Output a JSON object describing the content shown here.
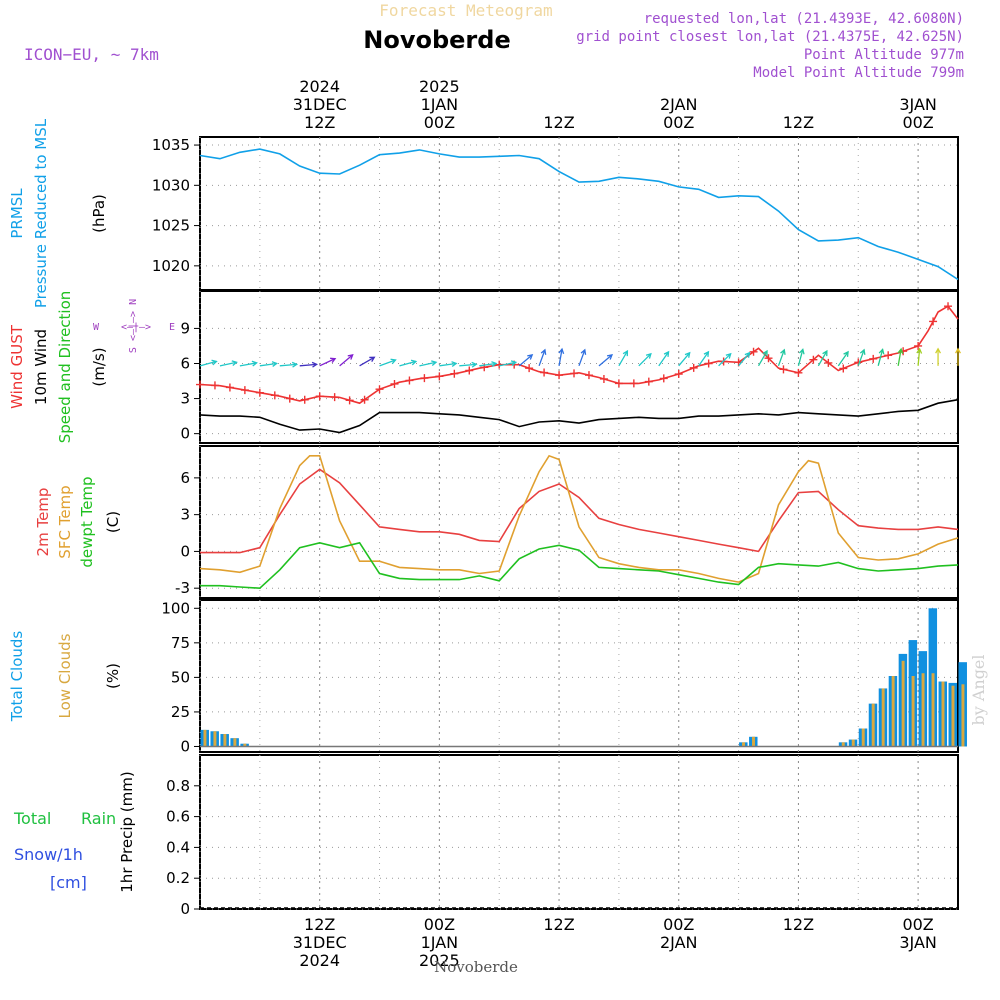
{
  "header": {
    "title": "Novoberde",
    "subtitle": "Forecast Meteogram",
    "model": "ICON−EU, ~ 7km",
    "info": [
      "requested lon,lat (21.4393E, 42.6080N)",
      "grid point closest lon,lat (21.4375E, 42.625N)",
      "Point Altitude 977m",
      "Model Point Altitude 799m"
    ],
    "footer": "Novoberde",
    "watermark": "by Angel"
  },
  "time_axis": {
    "top_labels": [
      {
        "hour": 12,
        "lines": [
          "2024",
          "31DEC",
          "12Z"
        ]
      },
      {
        "hour": 24,
        "lines": [
          "2025",
          "1JAN",
          "00Z"
        ]
      },
      {
        "hour": 36,
        "lines": [
          "12Z"
        ]
      },
      {
        "hour": 48,
        "lines": [
          "2JAN",
          "00Z"
        ]
      },
      {
        "hour": 60,
        "lines": [
          "12Z"
        ]
      },
      {
        "hour": 72,
        "lines": [
          "3JAN",
          "00Z"
        ]
      }
    ],
    "bottom_labels": [
      {
        "hour": 12,
        "lines": [
          "12Z",
          "31DEC",
          "2024"
        ]
      },
      {
        "hour": 24,
        "lines": [
          "00Z",
          "1JAN",
          "2025"
        ]
      },
      {
        "hour": 36,
        "lines": [
          "12Z"
        ]
      },
      {
        "hour": 48,
        "lines": [
          "00Z",
          "2JAN"
        ]
      },
      {
        "hour": 60,
        "lines": [
          "12Z"
        ]
      },
      {
        "hour": 72,
        "lines": [
          "00Z",
          "3JAN"
        ]
      }
    ]
  },
  "legend_compass": {
    "north": "N",
    "south": "S",
    "west": "W",
    "east": "E",
    "arrow": "<—|—>"
  },
  "colors": {
    "pressure": "#10a0e8",
    "gust": "#ee3333",
    "wind": "#000000",
    "t2m": "#e84040",
    "sfc": "#e0a030",
    "dewpt": "#20c020",
    "total_clouds": "#1090e0",
    "low_clouds": "#d8a840",
    "rain": "#20c040",
    "snow": "#3050e0",
    "compass": "#a040c0",
    "info": "#a050d0"
  },
  "chart_data": [
    {
      "type": "line",
      "id": "pressure",
      "panel_labels": [
        [
          "PRMSL",
          "#10a0e8"
        ],
        [
          "Pressure Reduced to MSL",
          "#10a0e8"
        ],
        [
          "(hPa)",
          "#000000"
        ]
      ],
      "ylim": [
        1017,
        1036
      ],
      "yticks": [
        1020,
        1025,
        1030,
        1035
      ],
      "series": [
        {
          "color_key": "pressure",
          "x": [
            0,
            2,
            4,
            6,
            8,
            10,
            12,
            14,
            16,
            18,
            20,
            22,
            24,
            26,
            28,
            30,
            32,
            34,
            36,
            38,
            40,
            42,
            44,
            46,
            48,
            50,
            52,
            54,
            56,
            58,
            60,
            62,
            64,
            66,
            68,
            70,
            72,
            74,
            76
          ],
          "values": [
            1033.7,
            1033.3,
            1034.1,
            1034.5,
            1033.9,
            1032.4,
            1031.5,
            1031.4,
            1032.5,
            1033.8,
            1034.0,
            1034.4,
            1033.9,
            1033.5,
            1033.5,
            1033.6,
            1033.7,
            1033.3,
            1031.7,
            1030.4,
            1030.5,
            1031.0,
            1030.8,
            1030.5,
            1029.8,
            1029.5,
            1028.5,
            1028.7,
            1028.6,
            1026.8,
            1024.5,
            1023.1,
            1023.2,
            1023.5,
            1022.4,
            1021.7,
            1020.8,
            1019.9,
            1018.3
          ]
        }
      ]
    },
    {
      "type": "line",
      "id": "wind",
      "panel_labels": [
        [
          "Wind GUST",
          "#ee3333"
        ],
        [
          "10m Wind",
          "#000000"
        ],
        [
          "Speed and Direction",
          "#20c020"
        ],
        [
          "(m/s)",
          "#000000"
        ]
      ],
      "ylim": [
        -0.8,
        12.2
      ],
      "yticks": [
        0,
        3,
        6,
        9
      ],
      "series": [
        {
          "name": "Wind GUST",
          "color_key": "gust",
          "marker": "plus",
          "x": [
            0,
            2,
            4,
            6,
            8,
            10,
            12,
            14,
            16,
            18,
            20,
            22,
            24,
            26,
            28,
            30,
            32,
            34,
            36,
            38,
            40,
            42,
            44,
            46,
            48,
            50,
            52,
            54,
            56,
            58,
            60,
            62,
            64,
            66,
            68,
            70,
            72,
            73,
            74,
            75,
            76
          ],
          "values": [
            4.2,
            4.1,
            3.8,
            3.5,
            3.2,
            2.8,
            3.2,
            3.1,
            2.6,
            3.8,
            4.4,
            4.7,
            4.9,
            5.2,
            5.6,
            5.9,
            5.9,
            5.3,
            5.0,
            5.2,
            4.8,
            4.3,
            4.3,
            4.6,
            5.1,
            5.8,
            6.2,
            6.1,
            7.3,
            5.6,
            5.2,
            6.7,
            5.4,
            6.1,
            6.5,
            6.9,
            7.5,
            8.8,
            10.4,
            10.9,
            9.8
          ]
        },
        {
          "name": "10m Wind",
          "color_key": "wind",
          "x": [
            0,
            2,
            4,
            6,
            8,
            10,
            12,
            14,
            16,
            18,
            20,
            22,
            24,
            26,
            28,
            30,
            32,
            34,
            36,
            38,
            40,
            42,
            44,
            46,
            48,
            50,
            52,
            54,
            56,
            58,
            60,
            62,
            64,
            66,
            68,
            70,
            72,
            74,
            76
          ],
          "values": [
            1.6,
            1.5,
            1.5,
            1.4,
            0.8,
            0.3,
            0.4,
            0.1,
            0.7,
            1.8,
            1.8,
            1.8,
            1.7,
            1.6,
            1.4,
            1.2,
            0.6,
            1.0,
            1.1,
            0.9,
            1.2,
            1.3,
            1.4,
            1.3,
            1.3,
            1.5,
            1.5,
            1.6,
            1.7,
            1.6,
            1.8,
            1.7,
            1.6,
            1.5,
            1.7,
            1.9,
            2.0,
            2.6,
            2.9
          ]
        }
      ],
      "arrows": {
        "base": 5.8,
        "x": [
          0,
          2,
          4,
          6,
          8,
          10,
          12,
          14,
          16,
          18,
          20,
          22,
          24,
          26,
          28,
          30,
          32,
          34,
          36,
          38,
          40,
          42,
          44,
          46,
          48,
          50,
          52,
          54,
          56,
          58,
          60,
          62,
          64,
          66,
          68,
          70,
          72,
          74,
          76
        ],
        "dir_deg": [
          255,
          258,
          260,
          262,
          265,
          265,
          245,
          230,
          240,
          250,
          255,
          258,
          262,
          265,
          262,
          258,
          230,
          200,
          190,
          200,
          230,
          210,
          225,
          215,
          220,
          215,
          225,
          220,
          210,
          200,
          195,
          210,
          215,
          200,
          195,
          190,
          185,
          180,
          180
        ],
        "colors": [
          "#20c8c8",
          "#20c8c8",
          "#20c8c8",
          "#20c8c8",
          "#20c8c8",
          "#4030c0",
          "#8020d0",
          "#8020d0",
          "#4030c0",
          "#20c8c8",
          "#20c8c8",
          "#20c8c8",
          "#20c8c8",
          "#20c8c8",
          "#20c8c8",
          "#20c8c8",
          "#3070e0",
          "#3070e0",
          "#3070e0",
          "#3070e0",
          "#3070e0",
          "#20c8c8",
          "#20c8c8",
          "#20c8c8",
          "#20c8c8",
          "#20c8c8",
          "#20c8c8",
          "#20c8c8",
          "#20c8a0",
          "#20c8a0",
          "#20c8a0",
          "#20c8a0",
          "#20c8a0",
          "#20c8a0",
          "#20c890",
          "#40c840",
          "#a0d020",
          "#d0d030",
          "#e0c020"
        ]
      }
    },
    {
      "type": "line",
      "id": "temperature",
      "panel_labels": [
        [
          "2m Temp",
          "#e84040"
        ],
        [
          "SFC Temp",
          "#e0a030"
        ],
        [
          "dewpt Temp",
          "#20c020"
        ],
        [
          "(C)",
          "#000000"
        ]
      ],
      "ylim": [
        -3.8,
        8.6
      ],
      "yticks": [
        -3,
        0,
        3,
        6
      ],
      "series": [
        {
          "name": "2m Temp",
          "color_key": "t2m",
          "x": [
            0,
            2,
            4,
            6,
            8,
            10,
            12,
            14,
            16,
            18,
            20,
            22,
            24,
            26,
            28,
            30,
            32,
            34,
            36,
            38,
            40,
            42,
            44,
            46,
            48,
            50,
            52,
            54,
            56,
            58,
            60,
            62,
            64,
            66,
            68,
            70,
            72,
            74,
            76
          ],
          "values": [
            -0.1,
            -0.1,
            -0.1,
            0.3,
            3.0,
            5.5,
            6.7,
            5.6,
            3.8,
            2.0,
            1.8,
            1.6,
            1.6,
            1.4,
            0.9,
            0.8,
            3.5,
            4.9,
            5.5,
            4.4,
            2.7,
            2.2,
            1.8,
            1.5,
            1.2,
            0.9,
            0.6,
            0.3,
            0.0,
            2.5,
            4.8,
            4.9,
            3.4,
            2.1,
            1.9,
            1.8,
            1.8,
            2.0,
            1.8
          ]
        },
        {
          "name": "SFC Temp",
          "color_key": "sfc",
          "x": [
            0,
            2,
            4,
            6,
            8,
            10,
            11,
            12,
            14,
            16,
            18,
            20,
            22,
            24,
            26,
            28,
            30,
            32,
            34,
            35,
            36,
            38,
            40,
            42,
            44,
            46,
            48,
            50,
            52,
            54,
            56,
            58,
            60,
            61,
            62,
            64,
            66,
            68,
            70,
            72,
            74,
            76
          ],
          "values": [
            -1.4,
            -1.5,
            -1.7,
            -1.2,
            3.5,
            7.0,
            7.8,
            7.8,
            2.5,
            -0.8,
            -0.8,
            -1.3,
            -1.4,
            -1.5,
            -1.5,
            -1.8,
            -1.6,
            2.9,
            6.5,
            7.8,
            7.5,
            2.0,
            -0.5,
            -1.0,
            -1.3,
            -1.5,
            -1.5,
            -1.8,
            -2.2,
            -2.5,
            -1.8,
            3.8,
            6.5,
            7.4,
            7.2,
            1.5,
            -0.5,
            -0.7,
            -0.6,
            -0.2,
            0.6,
            1.1
          ]
        },
        {
          "name": "dewpt Temp",
          "color_key": "dewpt",
          "x": [
            0,
            2,
            4,
            6,
            8,
            10,
            12,
            14,
            16,
            18,
            20,
            22,
            24,
            26,
            28,
            30,
            32,
            34,
            36,
            38,
            40,
            42,
            44,
            46,
            48,
            50,
            52,
            54,
            56,
            58,
            60,
            62,
            64,
            66,
            68,
            70,
            72,
            74,
            76
          ],
          "values": [
            -2.8,
            -2.8,
            -2.9,
            -3.0,
            -1.5,
            0.3,
            0.7,
            0.3,
            0.7,
            -1.8,
            -2.2,
            -2.3,
            -2.3,
            -2.3,
            -2.0,
            -2.4,
            -0.6,
            0.2,
            0.5,
            0.1,
            -1.3,
            -1.4,
            -1.5,
            -1.6,
            -1.9,
            -2.2,
            -2.5,
            -2.7,
            -1.3,
            -1.0,
            -1.1,
            -1.2,
            -0.9,
            -1.4,
            -1.6,
            -1.5,
            -1.4,
            -1.2,
            -1.1
          ]
        }
      ]
    },
    {
      "type": "bar",
      "id": "clouds",
      "panel_labels": [
        [
          "Total Clouds",
          "#10a0e8"
        ],
        [
          "Low Clouds",
          "#d8a840"
        ],
        [
          "(%)",
          "#000000"
        ]
      ],
      "ylim": [
        -4,
        106
      ],
      "yticks": [
        0,
        25,
        50,
        75,
        100
      ],
      "x": [
        0,
        1,
        2,
        3,
        4,
        5,
        6,
        7,
        8,
        9,
        10,
        11,
        12,
        13,
        14,
        15,
        16,
        17,
        18,
        19,
        20,
        21,
        22,
        23,
        24,
        25,
        26,
        27,
        28,
        29,
        30,
        31,
        32,
        33,
        34,
        35,
        36,
        37,
        38,
        39,
        40,
        41,
        42,
        43,
        44,
        45,
        46,
        47,
        48,
        49,
        50,
        51,
        52,
        53,
        54,
        55,
        56,
        57,
        58,
        59,
        60,
        61,
        62,
        63,
        64,
        65,
        66,
        67,
        68,
        69,
        70,
        71,
        72,
        73,
        74,
        75,
        76
      ],
      "series": [
        {
          "name": "Total Clouds",
          "color_key": "total_clouds",
          "values": [
            12,
            11,
            9,
            6,
            2,
            0,
            0,
            0,
            0,
            0,
            0,
            0,
            0,
            0,
            0,
            0,
            0,
            0,
            0,
            0,
            0,
            0,
            0,
            0,
            0,
            0,
            0,
            0,
            0,
            0,
            0,
            0,
            0,
            0,
            0,
            0,
            0,
            0,
            0,
            0,
            0,
            0,
            0,
            0,
            0,
            0,
            0,
            0,
            0,
            0,
            0,
            0,
            0,
            0,
            3,
            7,
            0,
            0,
            0,
            0,
            0,
            0,
            0,
            0,
            3,
            5,
            13,
            31,
            42,
            51,
            67,
            77,
            69,
            100,
            47,
            46,
            61
          ]
        },
        {
          "name": "Low Clouds",
          "color_key": "low_clouds",
          "values": [
            12,
            11,
            9,
            6,
            2,
            0,
            0,
            0,
            0,
            0,
            0,
            0,
            0,
            0,
            0,
            0,
            0,
            0,
            0,
            0,
            0,
            0,
            0,
            0,
            0,
            0,
            0,
            0,
            0,
            0,
            0,
            0,
            0,
            0,
            0,
            0,
            0,
            0,
            0,
            0,
            0,
            0,
            0,
            0,
            0,
            0,
            0,
            0,
            0,
            0,
            0,
            0,
            0,
            0,
            3,
            7,
            0,
            0,
            0,
            0,
            0,
            0,
            0,
            0,
            3,
            5,
            13,
            31,
            42,
            51,
            62,
            51,
            53,
            53,
            47,
            44,
            45
          ]
        }
      ]
    },
    {
      "type": "bar",
      "id": "precip",
      "panel_labels": [
        [
          "1hr Precip (mm)",
          "#000000"
        ]
      ],
      "side_labels": [
        {
          "parts": [
            [
              "Total",
              "#20c040"
            ],
            [
              "Rain",
              "#20c040"
            ]
          ]
        },
        {
          "parts": [
            [
              "Snow/1h",
              "#3050e0"
            ]
          ]
        },
        {
          "parts": [
            [
              "[cm]",
              "#3050e0"
            ]
          ]
        }
      ],
      "ylim": [
        0,
        1.0
      ],
      "yticks": [
        0,
        0.2,
        0.4,
        0.6,
        0.8
      ],
      "x": [],
      "series": [
        {
          "name": "Total Rain",
          "color_key": "rain",
          "values": []
        }
      ]
    }
  ]
}
